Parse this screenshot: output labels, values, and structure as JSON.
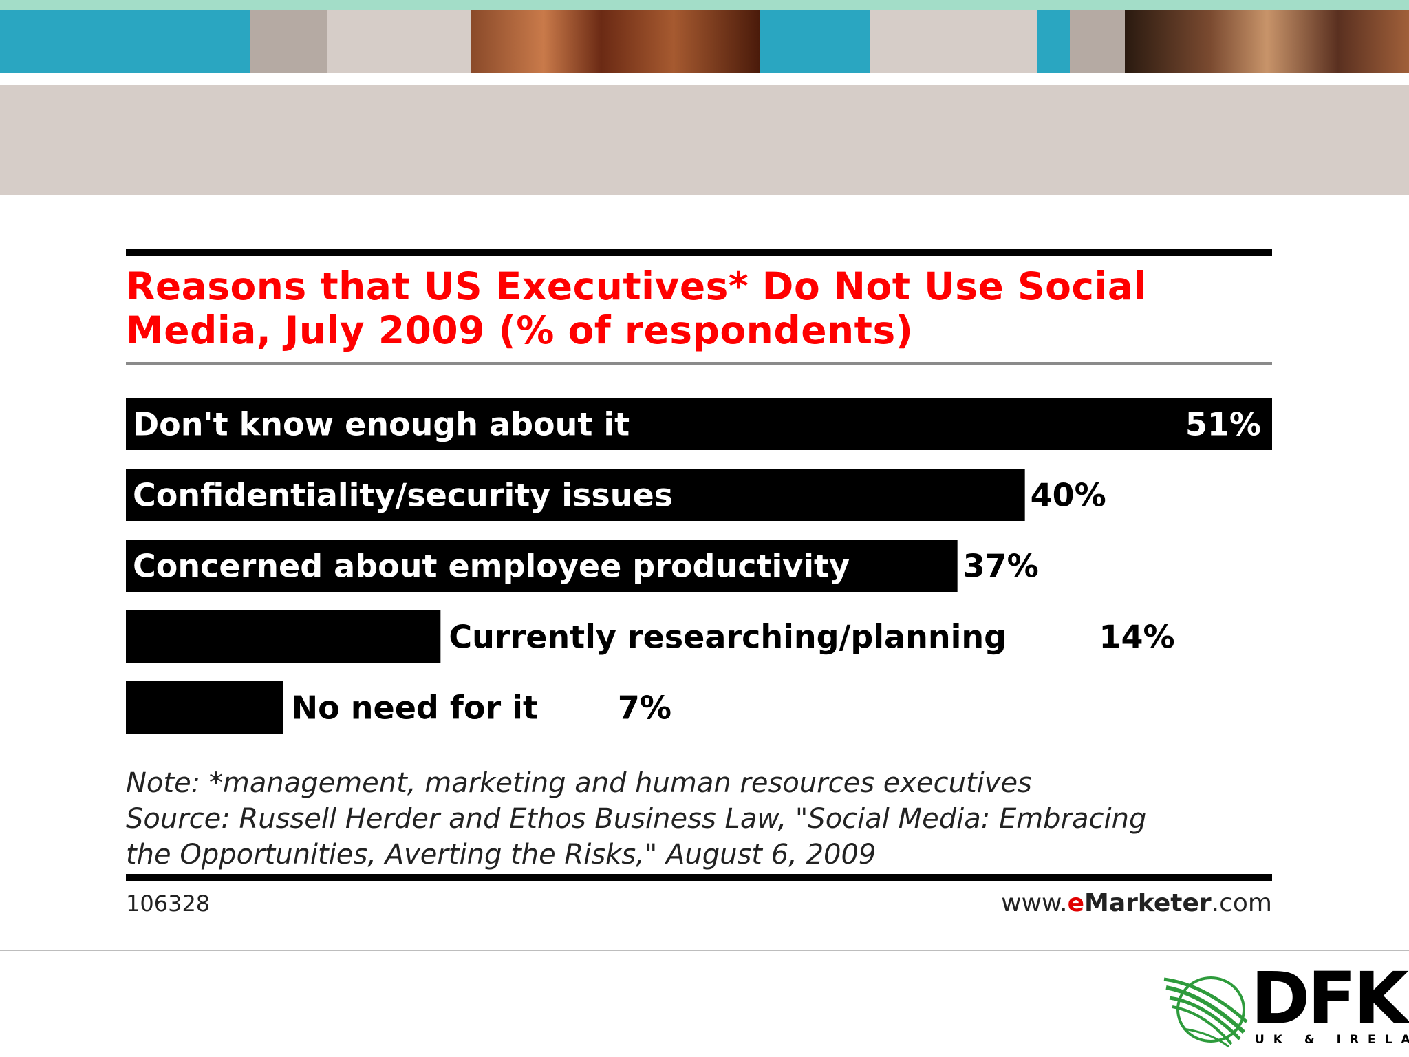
{
  "colors": {
    "teal": "#2aa6c1",
    "mint": "#a3ddc8",
    "taupe": "#b5aaa3",
    "light_taupe": "#d6cdc8",
    "title_red": "#ff0000",
    "bar": "#000000"
  },
  "chart_data": {
    "type": "bar",
    "orientation": "horizontal",
    "title": "Reasons that US Executives* Do Not Use Social Media, July 2009 (% of respondents)",
    "categories": [
      "Don't know enough about it",
      "Confidentiality/security issues",
      "Concerned about employee productivity",
      "Currently researching/planning",
      "No need for it"
    ],
    "values": [
      51,
      40,
      37,
      14,
      7
    ],
    "value_labels": [
      "51%",
      "40%",
      "37%",
      "14%",
      "7%"
    ],
    "xlim": [
      0,
      51
    ],
    "grid": false
  },
  "notes": {
    "note": "Note: *management, marketing and human resources executives",
    "source_line1": "Source: Russell Herder and Ethos Business Law, \"Social Media: Embracing",
    "source_line2": "the Opportunities, Averting the Risks,\" August 6, 2009"
  },
  "footer": {
    "chart_id": "106328",
    "brand_prefix": "www.",
    "brand_e": "e",
    "brand_marketer": "Marketer",
    "brand_suffix": ".com"
  },
  "logo": {
    "name": "DFK",
    "subtitle": "UK & IRELAND",
    "icon": "globe-swoosh-icon"
  }
}
